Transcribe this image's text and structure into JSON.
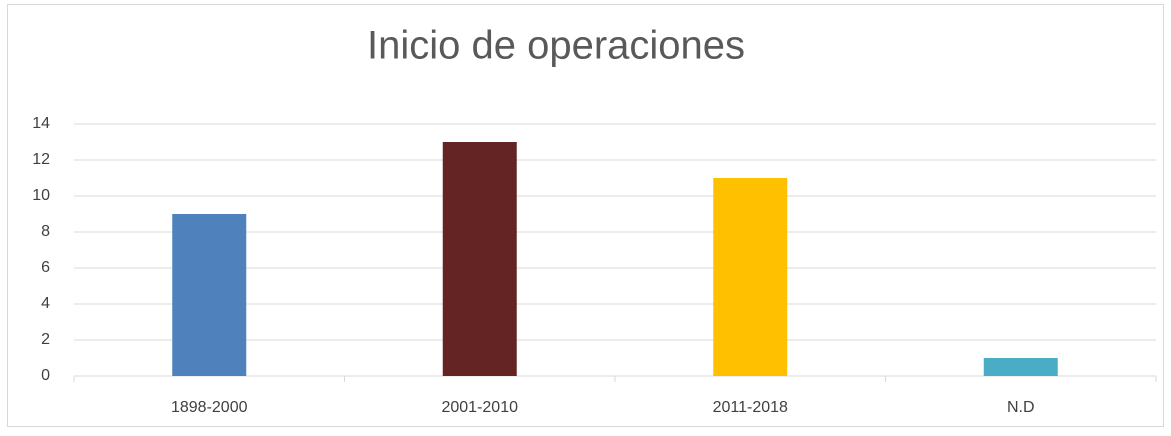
{
  "chart_data": {
    "type": "bar",
    "title": "Inicio de operaciones",
    "categories": [
      "1898-2000",
      "2001-2010",
      "2011-2018",
      "N.D"
    ],
    "values": [
      9,
      13,
      11,
      1
    ],
    "colors": [
      "#4f81bd",
      "#632423",
      "#ffc000",
      "#4bacc6"
    ],
    "ylim": [
      0,
      14
    ],
    "yticks": [
      0,
      2,
      4,
      6,
      8,
      10,
      12,
      14
    ],
    "grid": true
  }
}
